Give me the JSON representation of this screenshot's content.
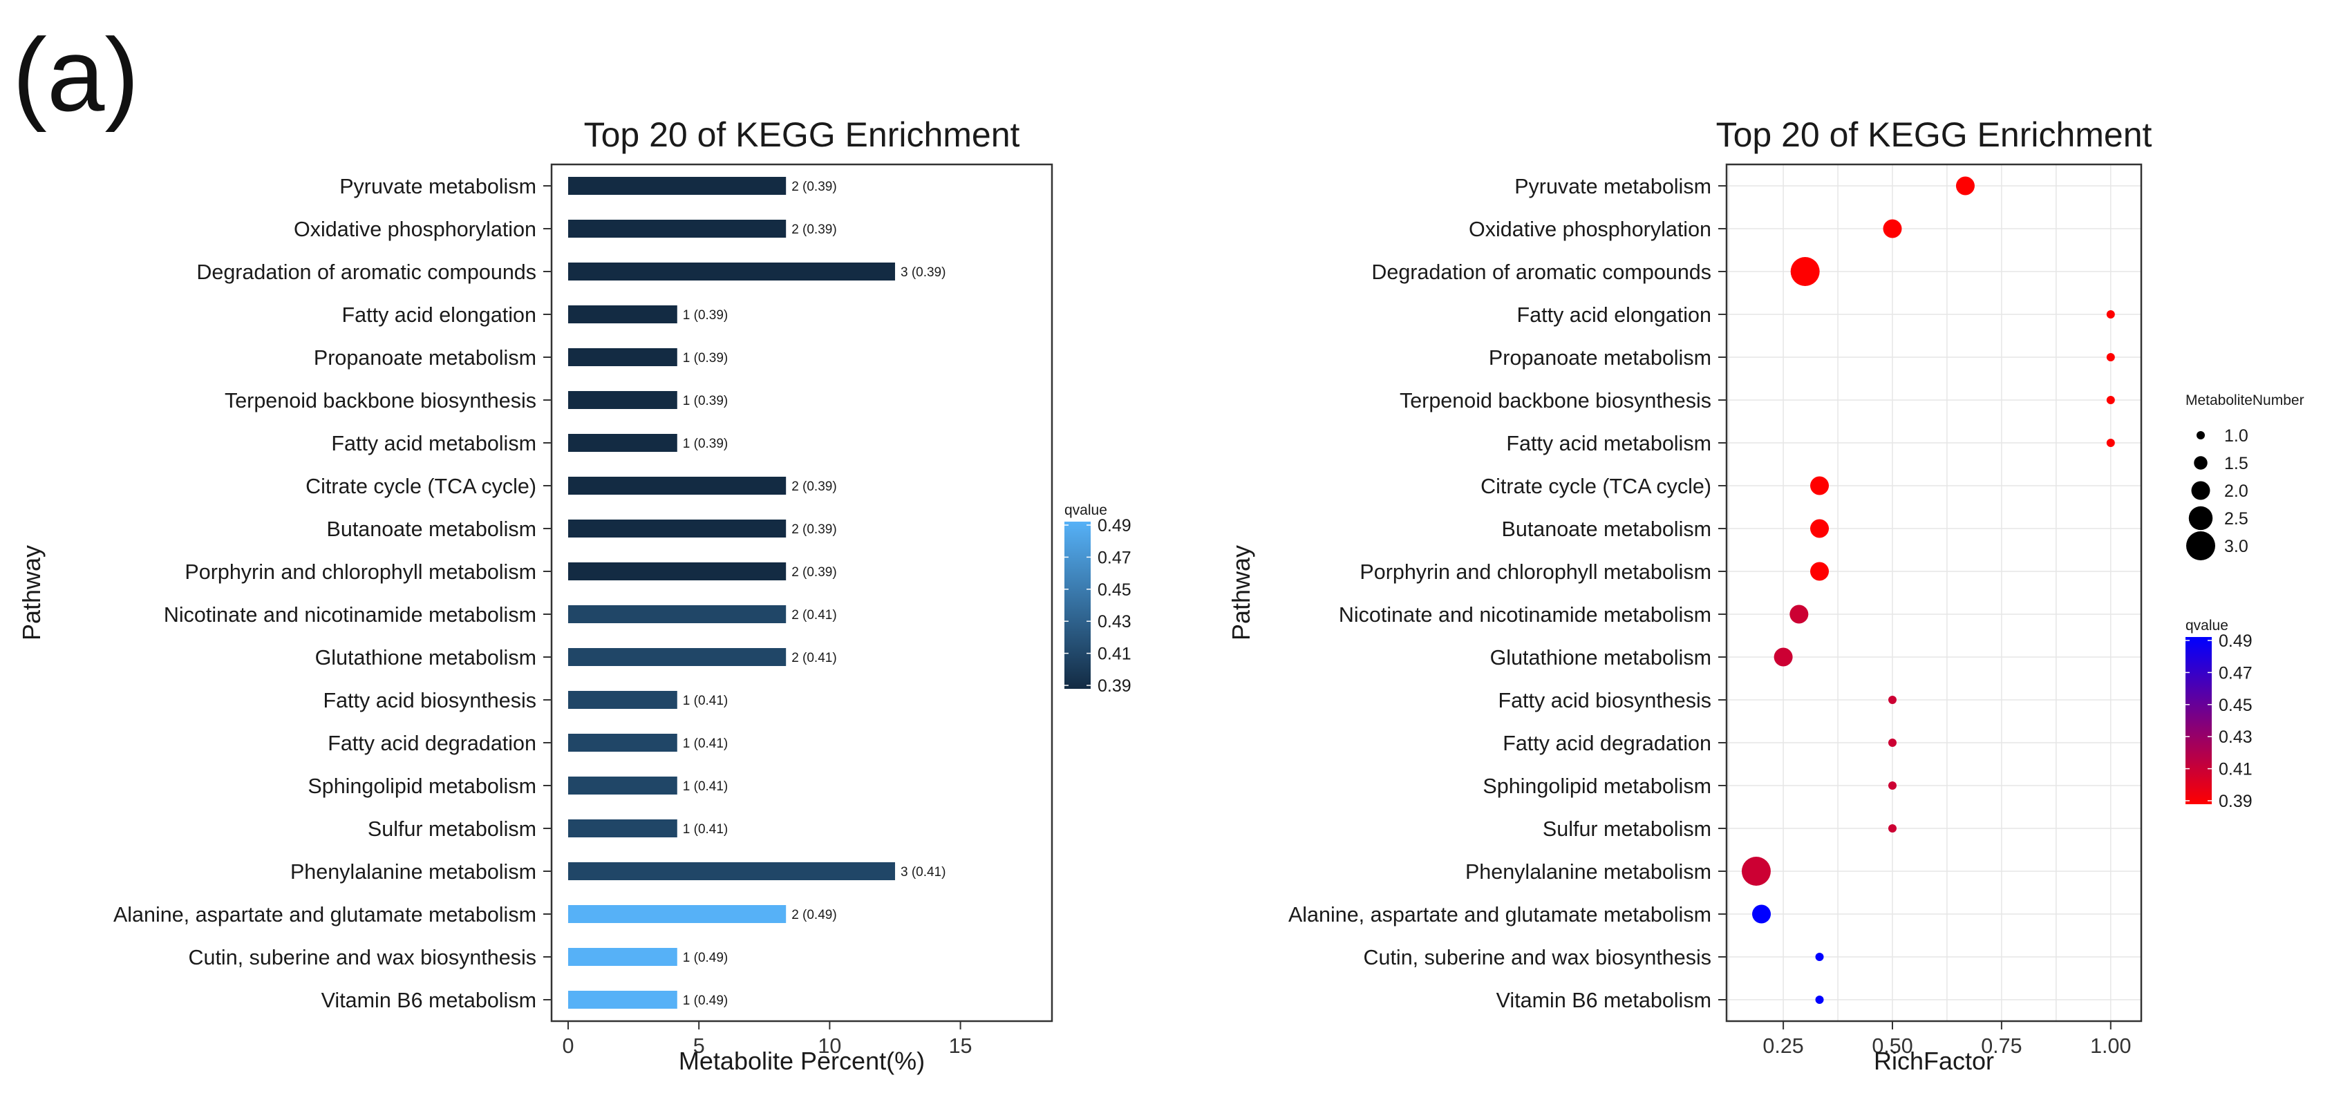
{
  "figure_label": "(a)",
  "colors": {
    "bar_low": "#132B43",
    "bar_high": "#56B1F7",
    "dot_low": "#FF0000",
    "dot_high": "#0000FF",
    "panel_border": "#333333",
    "grid": "#e6e6e6"
  },
  "chart_data": [
    {
      "type": "bar",
      "orientation": "horizontal",
      "title": "Top 20 of KEGG Enrichment",
      "xlabel": "Metabolite Percent(%)",
      "ylabel": "Pathway",
      "xlim": [
        0,
        18.5
      ],
      "xticks": [
        0,
        5,
        10,
        15
      ],
      "grid": false,
      "categories": [
        "Pyruvate metabolism",
        "Oxidative phosphorylation",
        "Degradation of aromatic compounds",
        "Fatty acid elongation",
        "Propanoate metabolism",
        "Terpenoid backbone biosynthesis",
        "Fatty acid metabolism",
        "Citrate cycle (TCA cycle)",
        "Butanoate metabolism",
        "Porphyrin and chlorophyll metabolism",
        "Nicotinate and nicotinamide metabolism",
        "Glutathione metabolism",
        "Fatty acid biosynthesis",
        "Fatty acid degradation",
        "Sphingolipid metabolism",
        "Sulfur metabolism",
        "Phenylalanine metabolism",
        "Alanine, aspartate and glutamate metabolism",
        "Cutin, suberine and wax biosynthesis",
        "Vitamin B6 metabolism"
      ],
      "values": [
        8.33,
        8.33,
        12.5,
        4.17,
        4.17,
        4.17,
        4.17,
        8.33,
        8.33,
        8.33,
        8.33,
        8.33,
        4.17,
        4.17,
        4.17,
        4.17,
        12.5,
        8.33,
        4.17,
        4.17
      ],
      "qvalues": [
        0.39,
        0.39,
        0.39,
        0.39,
        0.39,
        0.39,
        0.39,
        0.39,
        0.39,
        0.39,
        0.41,
        0.41,
        0.41,
        0.41,
        0.41,
        0.41,
        0.41,
        0.49,
        0.49,
        0.49
      ],
      "bar_labels": [
        "2 (0.39)",
        "2 (0.39)",
        "3 (0.39)",
        "1 (0.39)",
        "1 (0.39)",
        "1 (0.39)",
        "1 (0.39)",
        "2 (0.39)",
        "2 (0.39)",
        "2 (0.39)",
        "2 (0.41)",
        "2 (0.41)",
        "1 (0.41)",
        "1 (0.41)",
        "1 (0.41)",
        "1 (0.41)",
        "3 (0.41)",
        "2 (0.49)",
        "1 (0.49)",
        "1 (0.49)"
      ],
      "legend": {
        "title": "qvalue",
        "position": "right",
        "ticks": [
          "0.49",
          "0.47",
          "0.45",
          "0.43",
          "0.41",
          "0.39"
        ],
        "range": [
          0.39,
          0.49
        ]
      }
    },
    {
      "type": "scatter",
      "title": "Top 20 of KEGG Enrichment",
      "xlabel": "RichFactor",
      "ylabel": "Pathway",
      "xlim": [
        0.12,
        1.07
      ],
      "xticks": [
        0.25,
        0.5,
        0.75,
        1.0
      ],
      "xtick_labels": [
        "0.25",
        "0.50",
        "0.75",
        "1.00"
      ],
      "grid": true,
      "categories": [
        "Pyruvate metabolism",
        "Oxidative phosphorylation",
        "Degradation of aromatic compounds",
        "Fatty acid elongation",
        "Propanoate metabolism",
        "Terpenoid backbone biosynthesis",
        "Fatty acid metabolism",
        "Citrate cycle (TCA cycle)",
        "Butanoate metabolism",
        "Porphyrin and chlorophyll metabolism",
        "Nicotinate and nicotinamide metabolism",
        "Glutathione metabolism",
        "Fatty acid biosynthesis",
        "Fatty acid degradation",
        "Sphingolipid metabolism",
        "Sulfur metabolism",
        "Phenylalanine metabolism",
        "Alanine, aspartate and glutamate metabolism",
        "Cutin, suberine and wax biosynthesis",
        "Vitamin B6 metabolism"
      ],
      "richfactor": [
        0.667,
        0.5,
        0.3,
        1.0,
        1.0,
        1.0,
        1.0,
        0.333,
        0.333,
        0.333,
        0.286,
        0.25,
        0.5,
        0.5,
        0.5,
        0.5,
        0.188,
        0.2,
        0.333,
        0.333
      ],
      "metabolite_number": [
        2,
        2,
        3,
        1,
        1,
        1,
        1,
        2,
        2,
        2,
        2,
        2,
        1,
        1,
        1,
        1,
        3,
        2,
        1,
        1
      ],
      "qvalues": [
        0.39,
        0.39,
        0.39,
        0.39,
        0.39,
        0.39,
        0.39,
        0.39,
        0.39,
        0.39,
        0.41,
        0.41,
        0.41,
        0.41,
        0.41,
        0.41,
        0.41,
        0.49,
        0.49,
        0.49
      ],
      "size_legend": {
        "title": "MetaboliteNumber",
        "position": "right-top",
        "values": [
          1.0,
          1.5,
          2.0,
          2.5,
          3.0
        ],
        "labels": [
          "1.0",
          "1.5",
          "2.0",
          "2.5",
          "3.0"
        ]
      },
      "color_legend": {
        "title": "qvalue",
        "position": "right",
        "ticks": [
          "0.49",
          "0.47",
          "0.45",
          "0.43",
          "0.41",
          "0.39"
        ],
        "range": [
          0.39,
          0.49
        ]
      }
    }
  ]
}
